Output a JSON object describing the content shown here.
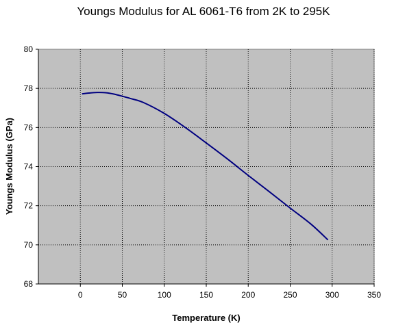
{
  "chart_data": {
    "type": "line",
    "title": "Youngs Modulus for AL 6061-T6 from 2K to 295K",
    "xlabel": "Temperature (K)",
    "ylabel": "Youngs Modulus (GPa)",
    "xlim": [
      -50,
      350
    ],
    "ylim": [
      68,
      80
    ],
    "xticks": [
      0,
      50,
      100,
      150,
      200,
      250,
      300,
      350
    ],
    "yticks": [
      68,
      70,
      72,
      74,
      76,
      78,
      80
    ],
    "grid": true,
    "legend": "none",
    "plot_background": "#c0c0c0",
    "gridline_style": "dotted",
    "series": [
      {
        "color": "#000080",
        "x": [
          2,
          10,
          20,
          30,
          40,
          50,
          60,
          75,
          100,
          125,
          150,
          175,
          200,
          225,
          250,
          275,
          295
        ],
        "y": [
          77.72,
          77.76,
          77.79,
          77.78,
          77.71,
          77.6,
          77.48,
          77.28,
          76.72,
          76.0,
          75.21,
          74.4,
          73.55,
          72.72,
          71.88,
          71.05,
          70.25
        ]
      }
    ]
  }
}
